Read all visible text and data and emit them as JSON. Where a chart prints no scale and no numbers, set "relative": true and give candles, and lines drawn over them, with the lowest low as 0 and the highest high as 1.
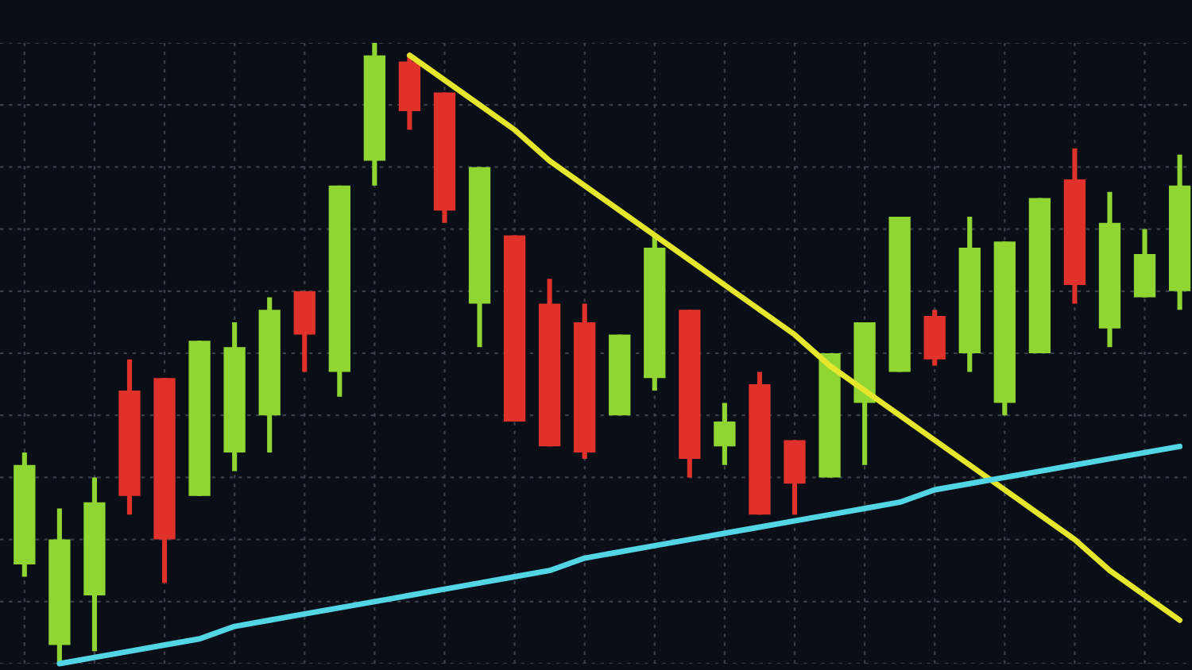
{
  "chart_data": {
    "type": "candlestick",
    "relative": true,
    "grid": true,
    "categories": [
      null,
      null,
      null,
      null,
      null,
      null,
      null,
      null,
      null,
      null,
      null,
      null,
      null,
      null,
      null,
      null,
      null,
      null,
      null,
      null,
      null,
      null,
      null,
      null,
      null,
      null,
      null,
      null,
      null,
      null,
      null,
      null,
      null,
      null
    ],
    "ohlc": [
      [
        0.16,
        0.34,
        0.14,
        0.32
      ],
      [
        0.03,
        0.25,
        0.0,
        0.2
      ],
      [
        0.11,
        0.3,
        0.02,
        0.26
      ],
      [
        0.44,
        0.49,
        0.24,
        0.27
      ],
      [
        0.46,
        0.46,
        0.13,
        0.2
      ],
      [
        0.27,
        0.52,
        0.27,
        0.52
      ],
      [
        0.34,
        0.55,
        0.31,
        0.51
      ],
      [
        0.4,
        0.59,
        0.34,
        0.57
      ],
      [
        0.6,
        0.6,
        0.47,
        0.53
      ],
      [
        0.47,
        0.77,
        0.43,
        0.77
      ],
      [
        0.81,
        1.0,
        0.77,
        0.98
      ],
      [
        0.97,
        0.98,
        0.86,
        0.89
      ],
      [
        0.92,
        0.92,
        0.71,
        0.73
      ],
      [
        0.58,
        0.8,
        0.51,
        0.8
      ],
      [
        0.69,
        0.69,
        0.39,
        0.39
      ],
      [
        0.58,
        0.62,
        0.35,
        0.35
      ],
      [
        0.55,
        0.58,
        0.33,
        0.34
      ],
      [
        0.4,
        0.53,
        0.4,
        0.53
      ],
      [
        0.46,
        0.69,
        0.44,
        0.67
      ],
      [
        0.57,
        0.57,
        0.3,
        0.33
      ],
      [
        0.35,
        0.42,
        0.32,
        0.39
      ],
      [
        0.45,
        0.47,
        0.24,
        0.24
      ],
      [
        0.36,
        0.36,
        0.24,
        0.29
      ],
      [
        0.3,
        0.5,
        0.3,
        0.5
      ],
      [
        0.42,
        0.55,
        0.32,
        0.55
      ],
      [
        0.47,
        0.72,
        0.47,
        0.72
      ],
      [
        0.56,
        0.57,
        0.48,
        0.49
      ],
      [
        0.5,
        0.72,
        0.47,
        0.67
      ],
      [
        0.42,
        0.68,
        0.4,
        0.68
      ],
      [
        0.5,
        0.75,
        0.5,
        0.75
      ],
      [
        0.78,
        0.83,
        0.58,
        0.61
      ],
      [
        0.54,
        0.76,
        0.51,
        0.71
      ],
      [
        0.59,
        0.7,
        0.59,
        0.66
      ],
      [
        0.6,
        0.82,
        0.57,
        0.77
      ]
    ],
    "colors": [
      "#8fd632",
      "#8fd632",
      "#8fd632",
      "#e0312b",
      "#e0312b",
      "#8fd632",
      "#8fd632",
      "#8fd632",
      "#e0312b",
      "#8fd632",
      "#8fd632",
      "#e0312b",
      "#e0312b",
      "#8fd632",
      "#e0312b",
      "#e0312b",
      "#e0312b",
      "#8fd632",
      "#8fd632",
      "#e0312b",
      "#8fd632",
      "#e0312b",
      "#e0312b",
      "#8fd632",
      "#8fd632",
      "#8fd632",
      "#e0312b",
      "#8fd632",
      "#8fd632",
      "#8fd632",
      "#e0312b",
      "#8fd632",
      "#8fd632",
      "#8fd632"
    ],
    "series": [
      {
        "type": "line",
        "color": "#e6e62c",
        "values": [
          null,
          null,
          null,
          null,
          null,
          null,
          null,
          null,
          null,
          null,
          null,
          0.98,
          0.94,
          0.9,
          0.86,
          0.81,
          0.77,
          0.73,
          0.69,
          0.65,
          0.61,
          0.57,
          0.53,
          0.48,
          0.44,
          0.4,
          0.36,
          0.32,
          0.28,
          0.24,
          0.2,
          0.15,
          0.11,
          0.07
        ]
      },
      {
        "type": "line",
        "color": "#52d6e6",
        "values": [
          null,
          0.0,
          0.01,
          0.02,
          0.03,
          0.04,
          0.06,
          0.07,
          0.08,
          0.09,
          0.1,
          0.11,
          0.12,
          0.13,
          0.14,
          0.15,
          0.17,
          0.18,
          0.19,
          0.2,
          0.21,
          0.22,
          0.23,
          0.24,
          0.25,
          0.26,
          0.28,
          0.29,
          0.3,
          0.31,
          0.32,
          0.33,
          0.34,
          0.35
        ]
      }
    ]
  }
}
